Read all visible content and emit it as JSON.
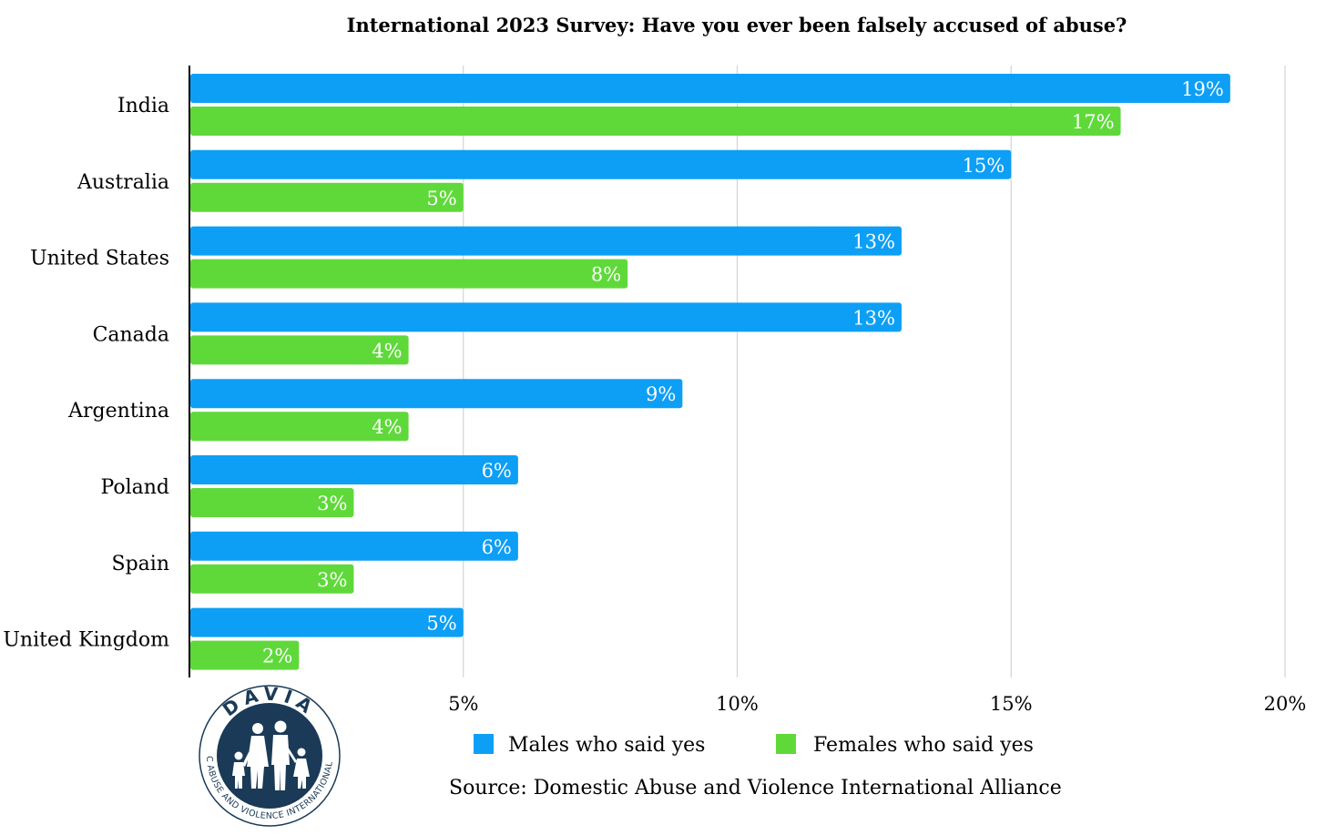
{
  "chart_data": {
    "type": "bar",
    "orientation": "horizontal",
    "title": "International 2023 Survey: Have you ever been falsely accused of abuse?",
    "categories": [
      "India",
      "Australia",
      "United States",
      "Canada",
      "Argentina",
      "Poland",
      "Spain",
      "United Kingdom"
    ],
    "series": [
      {
        "name": "Males who said yes",
        "color": "#0d9ff5",
        "values": [
          19,
          15,
          13,
          13,
          9,
          6,
          6,
          5
        ],
        "labels": [
          "19%",
          "15%",
          "13%",
          "13%",
          "9%",
          "6%",
          "6%",
          "5%"
        ]
      },
      {
        "name": "Females who said yes",
        "color": "#5fd93a",
        "values": [
          17,
          5,
          8,
          4,
          4,
          3,
          3,
          2
        ],
        "labels": [
          "17%",
          "5%",
          "8%",
          "4%",
          "4%",
          "3%",
          "3%",
          "2%"
        ]
      }
    ],
    "xlim": [
      0,
      20
    ],
    "xticks": [
      5,
      10,
      15,
      20
    ],
    "xtick_labels": [
      "5%",
      "10%",
      "15%",
      "20%"
    ],
    "grid": "vertical",
    "legend_position": "bottom",
    "source": "Source: Domestic Abuse and Violence International Alliance"
  },
  "logo": {
    "name": "davia-logo-icon",
    "top_text": "DAVIA",
    "ring_text": "DOMESTIC ABUSE AND VIOLENCE INTERNATIONAL ALLIANCE",
    "color": "#1a3a57"
  }
}
